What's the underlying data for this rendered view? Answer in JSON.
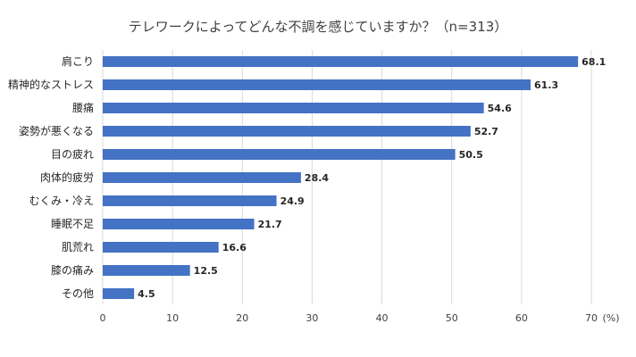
{
  "chart_data": {
    "type": "bar",
    "orientation": "horizontal",
    "title": "テレワークによってどんな不調を感じていますか？（n=313）",
    "categories": [
      "肩こり",
      "精神的なストレス",
      "腰痛",
      "姿勢が悪くなる",
      "目の疲れ",
      "肉体的疲労",
      "むくみ・冷え",
      "睡眠不足",
      "肌荒れ",
      "膝の痛み",
      "その他"
    ],
    "values": [
      68.1,
      61.3,
      54.6,
      52.7,
      50.5,
      28.4,
      24.9,
      21.7,
      16.6,
      12.5,
      4.5
    ],
    "xlim": [
      0,
      70
    ],
    "xticks": [
      0,
      10,
      20,
      30,
      40,
      50,
      60,
      70
    ],
    "xunit": "(%)",
    "bar_color": "#4472C4",
    "grid": true,
    "legend": "none"
  }
}
